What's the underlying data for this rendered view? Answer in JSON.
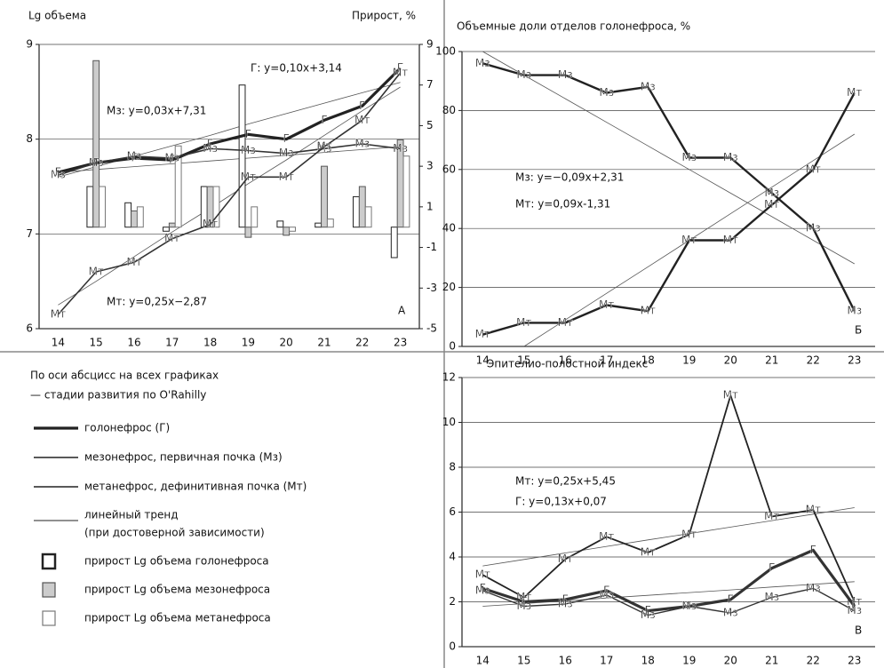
{
  "chart_data": [
    {
      "type": "line",
      "panel": "А",
      "title": "Lg объема",
      "y2_title": "Прирост, %",
      "categories": [
        14,
        15,
        16,
        17,
        18,
        19,
        20,
        21,
        22,
        23
      ],
      "ylim": [
        6,
        9
      ],
      "yticks": [
        6,
        7,
        8,
        9
      ],
      "y2lim": [
        -5,
        9
      ],
      "y2ticks": [
        9,
        7,
        5,
        3,
        1,
        -1,
        -3,
        -5
      ],
      "grid": true,
      "series": [
        {
          "name": "Г",
          "color": "#222222",
          "width": 3.2,
          "values": [
            7.65,
            7.75,
            7.8,
            7.78,
            7.95,
            8.05,
            8.0,
            8.2,
            8.35,
            8.75
          ]
        },
        {
          "name": "Мз",
          "color": "#333333",
          "width": 1.6,
          "values": [
            7.62,
            7.75,
            7.82,
            7.8,
            7.9,
            7.88,
            7.85,
            7.9,
            7.95,
            7.9
          ]
        },
        {
          "name": "Мт",
          "color": "#333333",
          "width": 1.6,
          "values": [
            6.15,
            6.6,
            6.7,
            6.95,
            7.1,
            7.6,
            7.6,
            7.92,
            8.2,
            8.7
          ]
        },
        {
          "name": "прирост Lg объема голонефроса",
          "axis": "y2",
          "color": "#ffffff",
          "stroke": "#222222",
          "values": [
            null,
            2,
            1.2,
            -0.2,
            2,
            7,
            0.3,
            0.2,
            1.5,
            -1.5
          ]
        },
        {
          "name": "прирост Lg объема мезонефроса",
          "axis": "y2",
          "color": "#cccccc",
          "stroke": "#555555",
          "values": [
            null,
            8.2,
            0.8,
            0.2,
            2,
            -0.5,
            -0.4,
            3,
            2,
            4.3
          ]
        },
        {
          "name": "прирост Lg объема метанефроса",
          "axis": "y2",
          "color": "#ffffff",
          "stroke": "#777777",
          "values": [
            null,
            2,
            1,
            4,
            2,
            1,
            -0.2,
            0.4,
            1,
            3.5
          ]
        }
      ],
      "trends": [
        {
          "values": [
            7.6,
            7.71,
            7.82,
            7.93,
            8.04,
            8.16,
            8.27,
            8.38,
            8.49,
            8.6
          ]
        },
        {
          "values": [
            7.65,
            7.68,
            7.71,
            7.74,
            7.77,
            7.8,
            7.83,
            7.86,
            7.89,
            7.92
          ]
        },
        {
          "values": [
            6.25,
            6.5,
            6.76,
            7.02,
            7.27,
            7.53,
            7.78,
            8.04,
            8.3,
            8.55
          ]
        }
      ],
      "annotations": [
        "Г: y=0,10x+3,14",
        "Мз: y=0,03x+7,31",
        "Мт: y=0,25x−2,87"
      ]
    },
    {
      "type": "line",
      "panel": "Б",
      "title": "Объемные доли отделов голонефроса, %",
      "categories": [
        14,
        15,
        16,
        17,
        18,
        19,
        20,
        21,
        22,
        23
      ],
      "ylim": [
        0,
        100
      ],
      "yticks": [
        0,
        20,
        40,
        60,
        80,
        100
      ],
      "grid": true,
      "series": [
        {
          "name": "Мз",
          "color": "#222222",
          "width": 2.4,
          "values": [
            96,
            92,
            92,
            86,
            88,
            64,
            64,
            52,
            40,
            12
          ]
        },
        {
          "name": "Мт",
          "color": "#222222",
          "width": 2.4,
          "values": [
            4,
            8,
            8,
            14,
            12,
            36,
            36,
            48,
            60,
            86
          ]
        }
      ],
      "trends": [
        {
          "values": [
            100,
            92,
            84,
            76,
            68,
            60,
            52,
            44,
            36,
            28
          ]
        },
        {
          "values": [
            null,
            0,
            9,
            18,
            27,
            36,
            45,
            54,
            63,
            72
          ]
        }
      ],
      "annotations": [
        "Мз: y=−0,09x+2,31",
        "Мт: y=0,09x-1,31"
      ]
    },
    {
      "type": "line",
      "panel": "В",
      "title": "Эпителио-полостной индекс",
      "categories": [
        14,
        15,
        16,
        17,
        18,
        19,
        20,
        21,
        22,
        23
      ],
      "ylim": [
        0,
        12
      ],
      "yticks": [
        0,
        2,
        4,
        6,
        8,
        10,
        12
      ],
      "grid": true,
      "series": [
        {
          "name": "Мт",
          "color": "#222222",
          "width": 1.8,
          "values": [
            3.2,
            2.2,
            3.9,
            4.9,
            4.2,
            5.0,
            11.2,
            5.8,
            6.1,
            2.0
          ]
        },
        {
          "name": "Г",
          "color": "#333333",
          "width": 3.2,
          "values": [
            2.6,
            2.0,
            2.1,
            2.5,
            1.6,
            1.8,
            2.1,
            3.5,
            4.3,
            1.8
          ]
        },
        {
          "name": "Мз",
          "color": "#333333",
          "width": 1.4,
          "values": [
            2.5,
            1.8,
            1.9,
            2.3,
            1.4,
            1.8,
            1.5,
            2.2,
            2.6,
            1.6
          ]
        }
      ],
      "trends": [
        {
          "values": [
            3.6,
            3.89,
            4.18,
            4.47,
            4.76,
            5.04,
            5.33,
            5.62,
            5.91,
            6.2
          ]
        },
        {
          "values": [
            1.8,
            1.92,
            2.04,
            2.17,
            2.29,
            2.41,
            2.53,
            2.66,
            2.78,
            2.9
          ]
        }
      ],
      "annotations": [
        "Мт: y=0,25x+5,45",
        "Г: y=0,13x+0,07"
      ]
    }
  ],
  "legend": {
    "caption": [
      "По оси абсцисс на всех графиках",
      "— стадии развития по O'Rahilly"
    ],
    "items": [
      "голонефрос (Г)",
      "мезонефрос, первичная почка (Мз)",
      "метанефрос, дефинитивная почка (Мт)",
      "линейный тренд",
      "(при достоверной зависимости)"
    ]
  }
}
